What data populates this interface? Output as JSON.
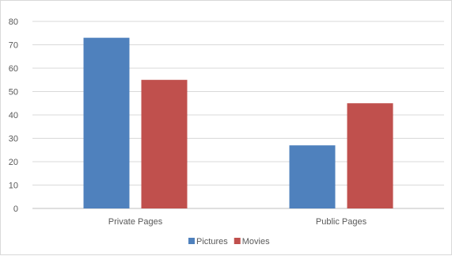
{
  "chart_data": {
    "type": "bar",
    "categories": [
      "Private Pages",
      "Public Pages"
    ],
    "series": [
      {
        "name": "Pictures",
        "color": "#4f81bd",
        "values": [
          73,
          27
        ]
      },
      {
        "name": "Movies",
        "color": "#c0504d",
        "values": [
          55,
          45
        ]
      }
    ],
    "ylim": [
      0,
      80
    ],
    "yticks": [
      "0",
      "10",
      "20",
      "30",
      "40",
      "50",
      "60",
      "70",
      "80"
    ],
    "grid": true,
    "legend": "bottom"
  }
}
